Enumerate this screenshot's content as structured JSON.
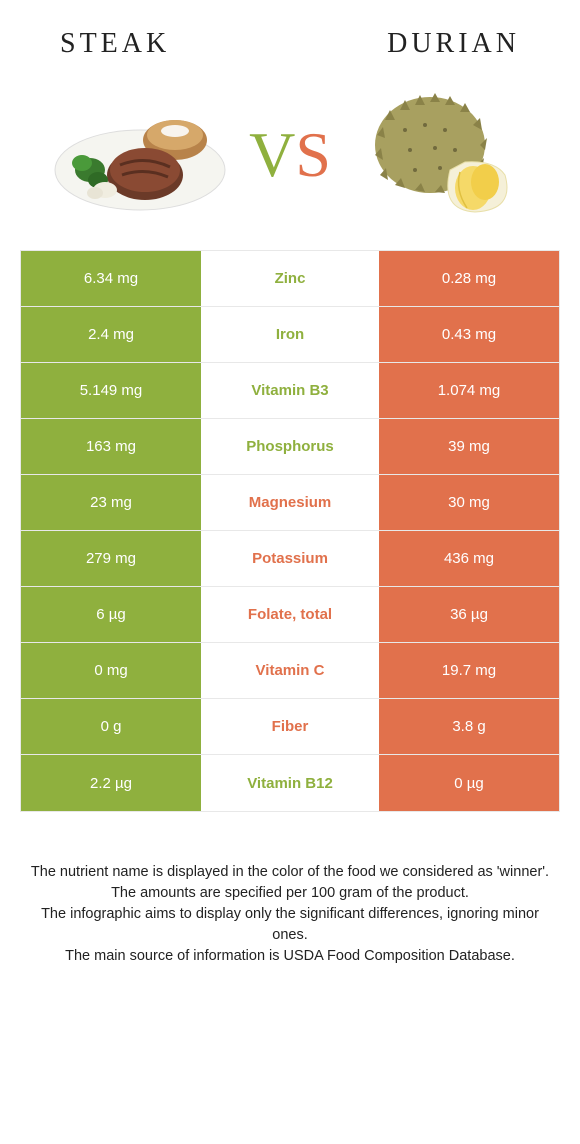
{
  "header": {
    "left_title": "Steak",
    "right_title": "Durian"
  },
  "vs": {
    "v": "V",
    "s": "S"
  },
  "colors": {
    "left": "#8fb03e",
    "right": "#e1714c",
    "left_text_winner": "#8fb03e",
    "right_text_winner": "#e1714c"
  },
  "rows": [
    {
      "left": "6.34 mg",
      "label": "Zinc",
      "right": "0.28 mg",
      "winner": "left"
    },
    {
      "left": "2.4 mg",
      "label": "Iron",
      "right": "0.43 mg",
      "winner": "left"
    },
    {
      "left": "5.149 mg",
      "label": "Vitamin B3",
      "right": "1.074 mg",
      "winner": "left"
    },
    {
      "left": "163 mg",
      "label": "Phosphorus",
      "right": "39 mg",
      "winner": "left"
    },
    {
      "left": "23 mg",
      "label": "Magnesium",
      "right": "30 mg",
      "winner": "right"
    },
    {
      "left": "279 mg",
      "label": "Potassium",
      "right": "436 mg",
      "winner": "right"
    },
    {
      "left": "6 µg",
      "label": "Folate, total",
      "right": "36 µg",
      "winner": "right"
    },
    {
      "left": "0 mg",
      "label": "Vitamin C",
      "right": "19.7 mg",
      "winner": "right"
    },
    {
      "left": "0 g",
      "label": "Fiber",
      "right": "3.8 g",
      "winner": "right"
    },
    {
      "left": "2.2 µg",
      "label": "Vitamin B12",
      "right": "0 µg",
      "winner": "left"
    }
  ],
  "footer": {
    "line1": "The nutrient name is displayed in the color of the food we considered as 'winner'.",
    "line2": "The amounts are specified per 100 gram of the product.",
    "line3": "The infographic aims to display only the significant differences, ignoring minor ones.",
    "line4": "The main source of information is USDA Food Composition Database."
  }
}
